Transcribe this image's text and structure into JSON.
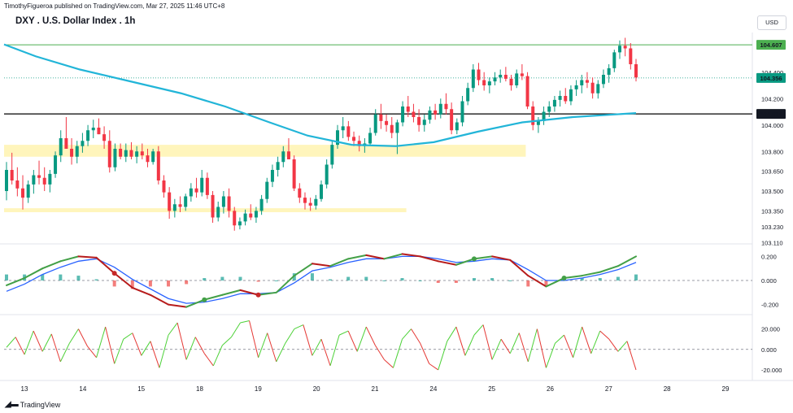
{
  "header": {
    "publisher_line": "TimothyFigueroa published on TradingView.com, Mar 27, 2025 11:46 UTC+8",
    "symbol_title": "DXY . U.S. Dollar Index . 1h",
    "currency_button": "USD",
    "brand": "TradingView"
  },
  "colors": {
    "up": "#089981",
    "down": "#f23645",
    "ma": "#22b5d8",
    "zone": "#fff3b0",
    "green_line": "#4caf50",
    "black_line": "#000000",
    "osc_fast": "#43a047",
    "osc_fast_down": "#b71c1c",
    "osc_slow": "#2962ff",
    "rsi_up": "#4cd137",
    "rsi_down": "#e53935"
  },
  "chart_data": [
    {
      "type": "candlestick",
      "panel": "price",
      "y_ticks": [
        "104.400",
        "104.200",
        "104.000",
        "103.800",
        "103.650",
        "103.500",
        "103.350",
        "103.230",
        "103.110"
      ],
      "ylim": [
        103.1,
        104.7
      ],
      "x_labels": [
        "13",
        "14",
        "15",
        "18",
        "19",
        "20",
        "21",
        "24",
        "25",
        "26",
        "27",
        "28",
        "29"
      ],
      "price_labels": [
        {
          "value": "104.607",
          "kind": "green-line"
        },
        {
          "value": "104.356",
          "kind": "last-price"
        },
        {
          "value": "104.084",
          "kind": "black-line"
        }
      ],
      "candles_approx": [
        [
          103.5,
          103.72,
          103.43,
          103.66
        ],
        [
          103.66,
          103.79,
          103.55,
          103.58
        ],
        [
          103.58,
          103.68,
          103.46,
          103.52
        ],
        [
          103.52,
          103.62,
          103.36,
          103.45
        ],
        [
          103.45,
          103.58,
          103.41,
          103.55
        ],
        [
          103.55,
          103.66,
          103.48,
          103.62
        ],
        [
          103.62,
          103.73,
          103.55,
          103.6
        ],
        [
          103.6,
          103.68,
          103.5,
          103.55
        ],
        [
          103.55,
          103.66,
          103.49,
          103.63
        ],
        [
          103.63,
          103.8,
          103.6,
          103.77
        ],
        [
          103.77,
          103.96,
          103.72,
          103.9
        ],
        [
          103.9,
          104.06,
          103.84,
          103.82
        ],
        [
          103.82,
          103.9,
          103.7,
          103.76
        ],
        [
          103.76,
          103.88,
          103.71,
          103.84
        ],
        [
          103.84,
          103.94,
          103.79,
          103.88
        ],
        [
          103.88,
          104.0,
          103.84,
          103.96
        ],
        [
          103.96,
          104.04,
          103.9,
          103.98
        ],
        [
          103.98,
          104.05,
          103.93,
          103.93
        ],
        [
          103.93,
          103.99,
          103.82,
          103.88
        ],
        [
          103.88,
          103.96,
          103.64,
          103.68
        ],
        [
          103.68,
          103.86,
          103.65,
          103.82
        ],
        [
          103.82,
          103.86,
          103.74,
          103.76
        ],
        [
          103.76,
          103.86,
          103.72,
          103.81
        ],
        [
          103.81,
          103.87,
          103.74,
          103.76
        ],
        [
          103.76,
          103.84,
          103.71,
          103.8
        ],
        [
          103.8,
          103.86,
          103.74,
          103.77
        ],
        [
          103.77,
          103.82,
          103.68,
          103.72
        ],
        [
          103.72,
          103.82,
          103.7,
          103.8
        ],
        [
          103.8,
          103.84,
          103.55,
          103.58
        ],
        [
          103.58,
          103.62,
          103.45,
          103.49
        ],
        [
          103.49,
          103.53,
          103.29,
          103.35
        ],
        [
          103.35,
          103.44,
          103.3,
          103.4
        ],
        [
          103.4,
          103.46,
          103.34,
          103.38
        ],
        [
          103.38,
          103.48,
          103.35,
          103.46
        ],
        [
          103.46,
          103.56,
          103.42,
          103.52
        ],
        [
          103.52,
          103.6,
          103.45,
          103.49
        ],
        [
          103.49,
          103.66,
          103.46,
          103.6
        ],
        [
          103.6,
          103.64,
          103.44,
          103.47
        ],
        [
          103.47,
          103.5,
          103.26,
          103.3
        ],
        [
          103.3,
          103.42,
          103.27,
          103.38
        ],
        [
          103.38,
          103.5,
          103.33,
          103.46
        ],
        [
          103.46,
          103.52,
          103.3,
          103.35
        ],
        [
          103.35,
          103.38,
          103.2,
          103.24
        ],
        [
          103.24,
          103.3,
          103.21,
          103.27
        ],
        [
          103.27,
          103.36,
          103.24,
          103.33
        ],
        [
          103.33,
          103.4,
          103.28,
          103.3
        ],
        [
          103.3,
          103.38,
          103.26,
          103.35
        ],
        [
          103.35,
          103.47,
          103.32,
          103.44
        ],
        [
          103.44,
          103.6,
          103.41,
          103.57
        ],
        [
          103.57,
          103.7,
          103.53,
          103.66
        ],
        [
          103.66,
          103.76,
          103.61,
          103.72
        ],
        [
          103.72,
          103.84,
          103.68,
          103.8
        ],
        [
          103.8,
          103.9,
          103.76,
          103.74
        ],
        [
          103.74,
          103.77,
          103.5,
          103.52
        ],
        [
          103.52,
          103.56,
          103.41,
          103.45
        ],
        [
          103.45,
          103.49,
          103.36,
          103.41
        ],
        [
          103.41,
          103.45,
          103.35,
          103.39
        ],
        [
          103.39,
          103.47,
          103.36,
          103.44
        ],
        [
          103.44,
          103.58,
          103.42,
          103.55
        ],
        [
          103.55,
          103.74,
          103.52,
          103.7
        ],
        [
          103.7,
          103.88,
          103.67,
          103.85
        ],
        [
          103.85,
          104.0,
          103.82,
          103.96
        ],
        [
          103.96,
          104.06,
          103.9,
          103.99
        ],
        [
          103.99,
          104.03,
          103.88,
          103.91
        ],
        [
          103.91,
          103.95,
          103.84,
          103.88
        ],
        [
          103.88,
          103.92,
          103.8,
          103.84
        ],
        [
          103.84,
          103.9,
          103.79,
          103.86
        ],
        [
          103.86,
          103.98,
          103.84,
          103.94
        ],
        [
          103.94,
          104.12,
          103.92,
          104.08
        ],
        [
          104.08,
          104.16,
          103.97,
          104.03
        ],
        [
          104.03,
          104.08,
          103.95,
          104.0
        ],
        [
          104.0,
          104.06,
          103.9,
          103.94
        ],
        [
          103.94,
          104.04,
          103.78,
          104.02
        ],
        [
          104.02,
          104.18,
          103.99,
          104.14
        ],
        [
          104.14,
          104.22,
          104.06,
          104.1
        ],
        [
          104.1,
          104.16,
          104.02,
          104.06
        ],
        [
          104.06,
          104.12,
          103.95,
          104.0
        ],
        [
          104.0,
          104.08,
          103.95,
          104.04
        ],
        [
          104.04,
          104.14,
          104.01,
          104.11
        ],
        [
          104.11,
          104.16,
          104.04,
          104.08
        ],
        [
          104.08,
          104.2,
          104.05,
          104.16
        ],
        [
          104.16,
          104.24,
          104.08,
          104.12
        ],
        [
          104.12,
          104.17,
          103.93,
          103.96
        ],
        [
          103.96,
          104.05,
          103.93,
          104.02
        ],
        [
          104.02,
          104.22,
          103.99,
          104.18
        ],
        [
          104.18,
          104.32,
          104.15,
          104.28
        ],
        [
          104.28,
          104.46,
          104.25,
          104.42
        ],
        [
          104.42,
          104.47,
          104.3,
          104.34
        ],
        [
          104.34,
          104.4,
          104.26,
          104.3
        ],
        [
          104.3,
          104.36,
          104.24,
          104.33
        ],
        [
          104.33,
          104.4,
          104.3,
          104.36
        ],
        [
          104.36,
          104.42,
          104.32,
          104.38
        ],
        [
          104.38,
          104.44,
          104.33,
          104.35
        ],
        [
          104.35,
          104.38,
          104.26,
          104.3
        ],
        [
          104.3,
          104.42,
          104.28,
          104.39
        ],
        [
          104.39,
          104.46,
          104.34,
          104.37
        ],
        [
          104.37,
          104.4,
          104.12,
          104.14
        ],
        [
          104.14,
          104.18,
          103.96,
          104.0
        ],
        [
          104.0,
          104.06,
          103.94,
          104.03
        ],
        [
          104.03,
          104.14,
          104.0,
          104.1
        ],
        [
          104.1,
          104.18,
          104.06,
          104.14
        ],
        [
          104.14,
          104.22,
          104.1,
          104.19
        ],
        [
          104.19,
          104.26,
          104.14,
          104.22
        ],
        [
          104.22,
          104.28,
          104.16,
          104.18
        ],
        [
          104.18,
          104.3,
          104.15,
          104.27
        ],
        [
          104.27,
          104.34,
          104.22,
          104.3
        ],
        [
          104.3,
          104.38,
          104.24,
          104.34
        ],
        [
          104.34,
          104.4,
          104.28,
          104.32
        ],
        [
          104.32,
          104.36,
          104.2,
          104.24
        ],
        [
          104.24,
          104.34,
          104.2,
          104.31
        ],
        [
          104.31,
          104.42,
          104.28,
          104.38
        ],
        [
          104.38,
          104.46,
          104.32,
          104.43
        ],
        [
          104.43,
          104.57,
          104.4,
          104.55
        ],
        [
          104.55,
          104.64,
          104.5,
          104.6
        ],
        [
          104.6,
          104.66,
          104.52,
          104.58
        ],
        [
          104.58,
          104.62,
          104.42,
          104.46
        ],
        [
          104.46,
          104.5,
          104.33,
          104.36
        ]
      ],
      "moving_average_approx": [
        [
          0,
          104.61
        ],
        [
          0.05,
          104.52
        ],
        [
          0.12,
          104.42
        ],
        [
          0.2,
          104.33
        ],
        [
          0.28,
          104.24
        ],
        [
          0.35,
          104.14
        ],
        [
          0.42,
          104.02
        ],
        [
          0.48,
          103.92
        ],
        [
          0.55,
          103.85
        ],
        [
          0.62,
          103.84
        ],
        [
          0.68,
          103.87
        ],
        [
          0.75,
          103.95
        ],
        [
          0.82,
          104.02
        ],
        [
          0.9,
          104.06
        ],
        [
          1.0,
          104.09
        ]
      ],
      "zones": [
        {
          "from": 103.76,
          "to": 103.85,
          "x_end": 0.83
        },
        {
          "from": 103.34,
          "to": 103.37,
          "x_end": 0.64
        }
      ]
    },
    {
      "type": "line",
      "panel": "oscillator",
      "y_ticks": [
        "0.200",
        "0.000",
        "-0.200"
      ],
      "ylim": [
        -0.27,
        0.27
      ],
      "fast_approx": [
        -0.04,
        0.02,
        0.1,
        0.16,
        0.2,
        0.19,
        0.06,
        -0.06,
        -0.12,
        -0.2,
        -0.22,
        -0.16,
        -0.12,
        -0.08,
        -0.12,
        -0.1,
        0.04,
        0.14,
        0.12,
        0.18,
        0.21,
        0.18,
        0.22,
        0.2,
        0.16,
        0.13,
        0.18,
        0.2,
        0.17,
        0.04,
        -0.05,
        0.02,
        0.04,
        0.07,
        0.12,
        0.2
      ],
      "slow_approx": [
        -0.09,
        -0.03,
        0.05,
        0.11,
        0.16,
        0.18,
        0.11,
        0.01,
        -0.07,
        -0.15,
        -0.19,
        -0.18,
        -0.15,
        -0.11,
        -0.11,
        -0.1,
        -0.02,
        0.08,
        0.11,
        0.15,
        0.18,
        0.18,
        0.2,
        0.2,
        0.18,
        0.15,
        0.16,
        0.18,
        0.17,
        0.09,
        0.0,
        0.0,
        0.02,
        0.05,
        0.09,
        0.15
      ],
      "histogram_approx": [
        0.05,
        0.05,
        0.05,
        0.05,
        0.04,
        0.01,
        -0.05,
        -0.07,
        -0.05,
        -0.05,
        -0.03,
        0.02,
        0.03,
        0.03,
        -0.01,
        0.0,
        0.06,
        0.06,
        0.01,
        0.03,
        0.03,
        0.0,
        0.02,
        0.0,
        -0.02,
        -0.02,
        0.02,
        0.02,
        0.0,
        -0.05,
        -0.05,
        0.02,
        0.02,
        0.02,
        0.03,
        0.05
      ]
    },
    {
      "type": "line",
      "panel": "momentum",
      "y_ticks": [
        "20.000",
        "0.000",
        "-20.000"
      ],
      "ylim": [
        -28,
        30
      ],
      "values_approx": [
        2,
        12,
        -5,
        18,
        -2,
        15,
        -12,
        6,
        20,
        3,
        -8,
        22,
        -14,
        10,
        16,
        -6,
        8,
        -18,
        14,
        26,
        -10,
        12,
        -4,
        -16,
        4,
        12,
        26,
        28,
        -8,
        16,
        -12,
        6,
        20,
        24,
        -6,
        10,
        -16,
        14,
        18,
        -2,
        22,
        4,
        -10,
        -18,
        10,
        20,
        6,
        -14,
        -20,
        8,
        22,
        -6,
        14,
        24,
        -10,
        10,
        -4,
        16,
        -12,
        20,
        -18,
        6,
        14,
        -8,
        22,
        -4,
        18,
        10,
        -2,
        8,
        -20
      ]
    }
  ]
}
